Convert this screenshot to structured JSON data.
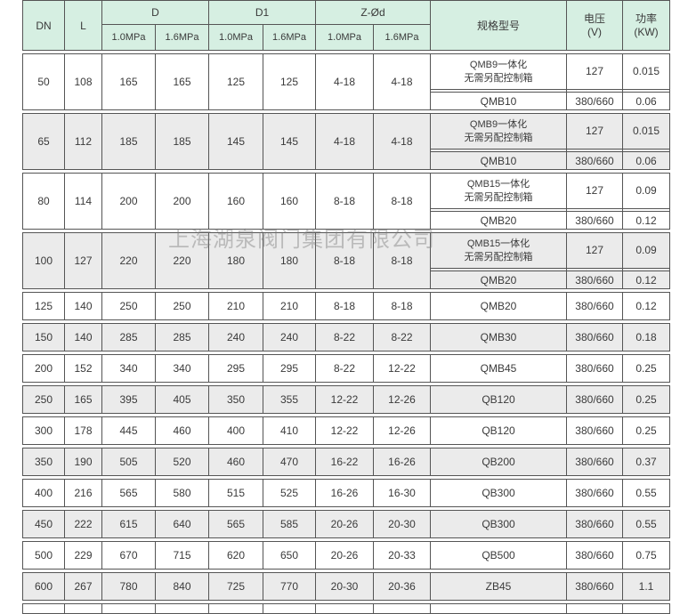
{
  "watermark": "上海湖泉阀门集团有限公司",
  "colors": {
    "header_bg": "#d6efe2",
    "row_alt_bg": "#ebebeb",
    "row_bg": "#ffffff",
    "border": "#555555",
    "text": "#3a3a3a"
  },
  "header": {
    "dn": "DN",
    "l": "L",
    "d": "D",
    "d1": "D1",
    "z": "Z-Ød",
    "mpa_low": "1.0MPa",
    "mpa_high": "1.6MPa",
    "spec": "规格型号",
    "voltage_line1": "电压",
    "voltage_line2": "(V)",
    "power_line1": "功率",
    "power_line2": "(KW)"
  },
  "groups": [
    {
      "dn": "50",
      "l": "108",
      "d10": "165",
      "d16": "165",
      "d1_10": "125",
      "d1_16": "125",
      "z10": "4-18",
      "z16": "4-18",
      "spec_top_line1": "QMB9一体化",
      "spec_top_line2": "无需另配控制箱",
      "volt_top": "127",
      "power_top": "0.015",
      "spec_bottom": "QMB10",
      "volt_bottom": "380/660",
      "power_bottom": "0.06",
      "shaded": false
    },
    {
      "dn": "65",
      "l": "112",
      "d10": "185",
      "d16": "185",
      "d1_10": "145",
      "d1_16": "145",
      "z10": "4-18",
      "z16": "4-18",
      "spec_top_line1": "QMB9一体化",
      "spec_top_line2": "无需另配控制箱",
      "volt_top": "127",
      "power_top": "0.015",
      "spec_bottom": "QMB10",
      "volt_bottom": "380/660",
      "power_bottom": "0.06",
      "shaded": true
    },
    {
      "dn": "80",
      "l": "114",
      "d10": "200",
      "d16": "200",
      "d1_10": "160",
      "d1_16": "160",
      "z10": "8-18",
      "z16": "8-18",
      "spec_top_line1": "QMB15一体化",
      "spec_top_line2": "无需另配控制箱",
      "volt_top": "127",
      "power_top": "0.09",
      "spec_bottom": "QMB20",
      "volt_bottom": "380/660",
      "power_bottom": "0.12",
      "shaded": false
    },
    {
      "dn": "100",
      "l": "127",
      "d10": "220",
      "d16": "220",
      "d1_10": "180",
      "d1_16": "180",
      "z10": "8-18",
      "z16": "8-18",
      "spec_top_line1": "QMB15一体化",
      "spec_top_line2": "无需另配控制箱",
      "volt_top": "127",
      "power_top": "0.09",
      "spec_bottom": "QMB20",
      "volt_bottom": "380/660",
      "power_bottom": "0.12",
      "shaded": true
    }
  ],
  "rows": [
    {
      "dn": "125",
      "l": "140",
      "d10": "250",
      "d16": "250",
      "d1_10": "210",
      "d1_16": "210",
      "z10": "8-18",
      "z16": "8-18",
      "spec": "QMB20",
      "volt": "380/660",
      "power": "0.12",
      "shaded": false
    },
    {
      "dn": "150",
      "l": "140",
      "d10": "285",
      "d16": "285",
      "d1_10": "240",
      "d1_16": "240",
      "z10": "8-22",
      "z16": "8-22",
      "spec": "QMB30",
      "volt": "380/660",
      "power": "0.18",
      "shaded": true
    },
    {
      "dn": "200",
      "l": "152",
      "d10": "340",
      "d16": "340",
      "d1_10": "295",
      "d1_16": "295",
      "z10": "8-22",
      "z16": "12-22",
      "spec": "QMB45",
      "volt": "380/660",
      "power": "0.25",
      "shaded": false
    },
    {
      "dn": "250",
      "l": "165",
      "d10": "395",
      "d16": "405",
      "d1_10": "350",
      "d1_16": "355",
      "z10": "12-22",
      "z16": "12-26",
      "spec": "QB120",
      "volt": "380/660",
      "power": "0.25",
      "shaded": true
    },
    {
      "dn": "300",
      "l": "178",
      "d10": "445",
      "d16": "460",
      "d1_10": "400",
      "d1_16": "410",
      "z10": "12-22",
      "z16": "12-26",
      "spec": "QB120",
      "volt": "380/660",
      "power": "0.25",
      "shaded": false
    },
    {
      "dn": "350",
      "l": "190",
      "d10": "505",
      "d16": "520",
      "d1_10": "460",
      "d1_16": "470",
      "z10": "16-22",
      "z16": "16-26",
      "spec": "QB200",
      "volt": "380/660",
      "power": "0.37",
      "shaded": true
    },
    {
      "dn": "400",
      "l": "216",
      "d10": "565",
      "d16": "580",
      "d1_10": "515",
      "d1_16": "525",
      "z10": "16-26",
      "z16": "16-30",
      "spec": "QB300",
      "volt": "380/660",
      "power": "0.55",
      "shaded": false
    },
    {
      "dn": "450",
      "l": "222",
      "d10": "615",
      "d16": "640",
      "d1_10": "565",
      "d1_16": "585",
      "z10": "20-26",
      "z16": "20-30",
      "spec": "QB300",
      "volt": "380/660",
      "power": "0.55",
      "shaded": true
    },
    {
      "dn": "500",
      "l": "229",
      "d10": "670",
      "d16": "715",
      "d1_10": "620",
      "d1_16": "650",
      "z10": "20-26",
      "z16": "20-33",
      "spec": "QB500",
      "volt": "380/660",
      "power": "0.75",
      "shaded": false
    },
    {
      "dn": "600",
      "l": "267",
      "d10": "780",
      "d16": "840",
      "d1_10": "725",
      "d1_16": "770",
      "z10": "20-30",
      "z16": "20-36",
      "spec": "ZB45",
      "volt": "380/660",
      "power": "1.1",
      "shaded": true
    }
  ]
}
